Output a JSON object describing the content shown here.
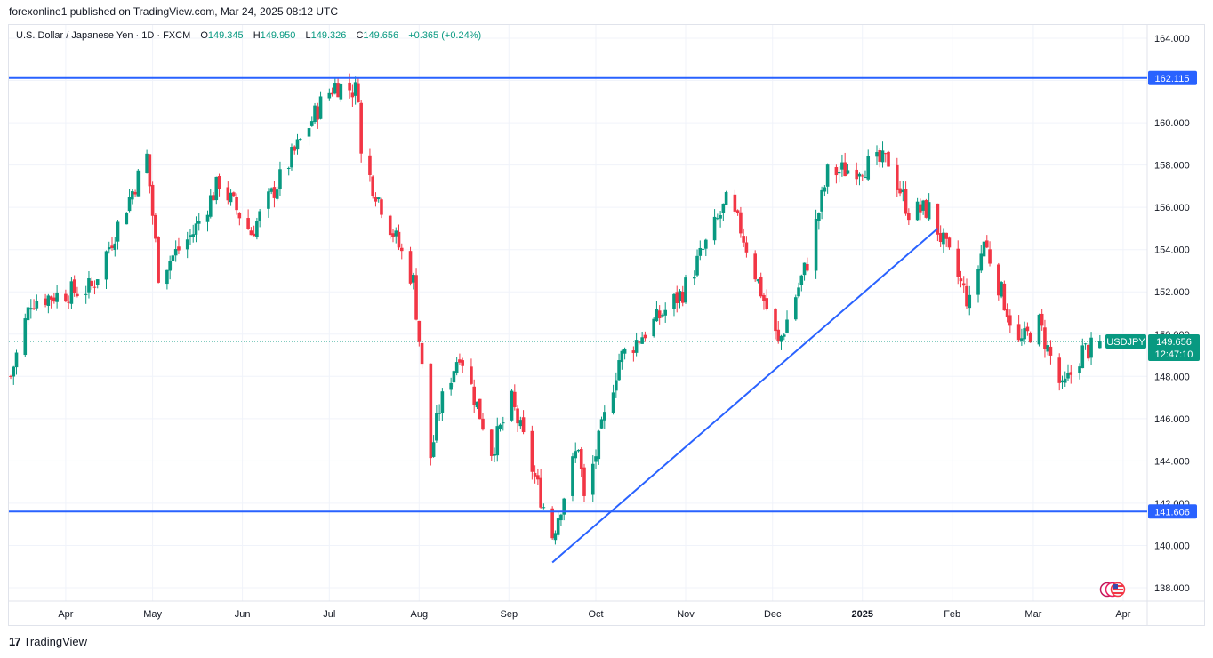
{
  "header": {
    "published": "forexonline1 published on TradingView.com, Mar 24, 2025 08:12 UTC"
  },
  "legend": {
    "title": "U.S. Dollar / Japanese Yen · 1D · FXCM",
    "o_label": "O",
    "o_value": "149.345",
    "h_label": "H",
    "h_value": "149.950",
    "l_label": "L",
    "l_value": "149.326",
    "c_label": "C",
    "c_value": "149.656",
    "change": "+0.365 (+0.24%)"
  },
  "footer": {
    "brand": "TradingView",
    "logo": "17"
  },
  "colors": {
    "up": "#089981",
    "down": "#f23645",
    "line": "#2962ff",
    "grid": "#f0f3fa",
    "axis_text": "#131722"
  },
  "chart_data": {
    "type": "candlestick",
    "symbol": "USDJPY",
    "timeframe": "1D",
    "ylim": [
      137.2,
      165.0
    ],
    "y_ticks": [
      "164.000",
      "162.000",
      "160.000",
      "158.000",
      "156.000",
      "154.000",
      "152.000",
      "150.000",
      "148.000",
      "146.000",
      "144.000",
      "142.000",
      "140.000",
      "138.000"
    ],
    "x_ticks": [
      "Apr",
      "May",
      "Jun",
      "Jul",
      "Aug",
      "Sep",
      "Oct",
      "Nov",
      "Dec",
      "2025",
      "Feb",
      "Mar",
      "Apr"
    ],
    "last_price": {
      "symbol": "USDJPY",
      "price": "149.656",
      "countdown": "12:47:10",
      "value": 149.656
    },
    "horizontal_lines": [
      {
        "label": "162.115",
        "value": 162.115
      },
      {
        "label": "141.606",
        "value": 141.606
      }
    ],
    "trendline": {
      "from": {
        "date": "2024-09-16",
        "value": 139.2
      },
      "to": {
        "date": "2025-01-27",
        "value": 155.0
      }
    },
    "path": [
      {
        "date": "2024-03-13",
        "value": 148.0
      },
      {
        "date": "2024-03-20",
        "value": 151.6
      },
      {
        "date": "2024-04-10",
        "value": 152.2
      },
      {
        "date": "2024-04-29",
        "value": 158.4
      },
      {
        "date": "2024-05-03",
        "value": 152.9
      },
      {
        "date": "2024-05-15",
        "value": 154.8
      },
      {
        "date": "2024-05-24",
        "value": 157.2
      },
      {
        "date": "2024-06-04",
        "value": 154.8
      },
      {
        "date": "2024-06-28",
        "value": 160.9
      },
      {
        "date": "2024-07-03",
        "value": 161.8
      },
      {
        "date": "2024-07-11",
        "value": 161.5
      },
      {
        "date": "2024-07-12",
        "value": 158.4
      },
      {
        "date": "2024-07-30",
        "value": 152.5
      },
      {
        "date": "2024-08-05",
        "value": 144.2
      },
      {
        "date": "2024-08-08",
        "value": 146.5
      },
      {
        "date": "2024-08-15",
        "value": 149.2
      },
      {
        "date": "2024-08-26",
        "value": 144.5
      },
      {
        "date": "2024-09-02",
        "value": 146.8
      },
      {
        "date": "2024-09-16",
        "value": 140.5
      },
      {
        "date": "2024-09-25",
        "value": 144.8
      },
      {
        "date": "2024-09-27",
        "value": 142.1
      },
      {
        "date": "2024-10-09",
        "value": 148.8
      },
      {
        "date": "2024-10-31",
        "value": 152.0
      },
      {
        "date": "2024-11-15",
        "value": 156.2
      },
      {
        "date": "2024-11-20",
        "value": 155.0
      },
      {
        "date": "2024-12-03",
        "value": 149.5
      },
      {
        "date": "2024-12-13",
        "value": 153.4
      },
      {
        "date": "2024-12-20",
        "value": 157.6
      },
      {
        "date": "2025-01-10",
        "value": 158.2
      },
      {
        "date": "2025-01-17",
        "value": 155.8
      },
      {
        "date": "2025-01-24",
        "value": 155.9
      },
      {
        "date": "2025-02-07",
        "value": 151.4
      },
      {
        "date": "2025-02-12",
        "value": 154.4
      },
      {
        "date": "2025-02-24",
        "value": 149.5
      },
      {
        "date": "2025-03-03",
        "value": 150.5
      },
      {
        "date": "2025-03-11",
        "value": 147.3
      },
      {
        "date": "2025-03-18",
        "value": 149.2
      },
      {
        "date": "2025-03-21",
        "value": 149.3
      },
      {
        "date": "2025-03-24",
        "value": 149.656
      }
    ]
  }
}
